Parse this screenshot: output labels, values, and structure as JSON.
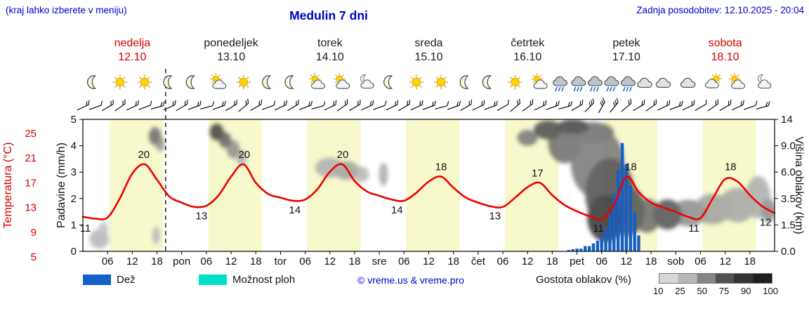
{
  "header": {
    "hint": "(kraj lahko izberete v meniju)",
    "title": "Medulin 7 dni",
    "updated": "Zadnja posodobitev: 12.10.2025 - 20:04"
  },
  "days": [
    {
      "name": "nedelja",
      "date": "12.10",
      "highlight": true
    },
    {
      "name": "ponedeljek",
      "date": "13.10",
      "highlight": false
    },
    {
      "name": "torek",
      "date": "14.10",
      "highlight": false
    },
    {
      "name": "sreda",
      "date": "15.10",
      "highlight": false
    },
    {
      "name": "četrtek",
      "date": "16.10",
      "highlight": false
    },
    {
      "name": "petek",
      "date": "17.10",
      "highlight": false
    },
    {
      "name": "sobota",
      "date": "18.10",
      "highlight": true
    }
  ],
  "axes": {
    "left_temp": {
      "label": "Temperatura (°C)"
    },
    "left_precip": {
      "label": "Padavine (mm/h)"
    },
    "right_cloud": {
      "label": "Višina oblakov (km)",
      "ticks": [
        "0.0",
        "1.5",
        "3.5",
        "6.0",
        "9.0",
        "14"
      ]
    },
    "x": {
      "hour_labels": [
        "06",
        "12",
        "18"
      ],
      "day_abbrevs": [
        "pon",
        "tor",
        "sre",
        "čet",
        "pet",
        "sob"
      ]
    }
  },
  "icons": [
    {
      "hour": 2.5,
      "type": "moon"
    },
    {
      "hour": 9,
      "type": "sun"
    },
    {
      "hour": 15,
      "type": "sun"
    },
    {
      "hour": 21,
      "type": "moon"
    },
    {
      "hour": 26.5,
      "type": "moon"
    },
    {
      "hour": 33,
      "type": "sun-cloud"
    },
    {
      "hour": 39,
      "type": "sun"
    },
    {
      "hour": 45,
      "type": "moon"
    },
    {
      "hour": 50.5,
      "type": "moon"
    },
    {
      "hour": 57,
      "type": "sun-cloud"
    },
    {
      "hour": 63,
      "type": "sun-cloud"
    },
    {
      "hour": 69,
      "type": "cloud-moon"
    },
    {
      "hour": 74.5,
      "type": "moon"
    },
    {
      "hour": 81,
      "type": "sun"
    },
    {
      "hour": 87,
      "type": "sun"
    },
    {
      "hour": 93,
      "type": "moon"
    },
    {
      "hour": 98.5,
      "type": "moon"
    },
    {
      "hour": 105,
      "type": "sun"
    },
    {
      "hour": 111,
      "type": "sun-cloud"
    },
    {
      "hour": 116,
      "type": "rain"
    },
    {
      "hour": 120.5,
      "type": "rain"
    },
    {
      "hour": 124.5,
      "type": "rain"
    },
    {
      "hour": 128.5,
      "type": "rain"
    },
    {
      "hour": 132.5,
      "type": "rain"
    },
    {
      "hour": 136.5,
      "type": "cloud"
    },
    {
      "hour": 141,
      "type": "cloud"
    },
    {
      "hour": 147,
      "type": "cloud"
    },
    {
      "hour": 153,
      "type": "cloud-sun"
    },
    {
      "hour": 159,
      "type": "sun-cloud"
    },
    {
      "hour": 165.5,
      "type": "cloud-moon"
    }
  ],
  "legend": {
    "rain_label": "Dež",
    "showers_label": "Možnost ploh",
    "copyright": "© vreme.us & vreme.pro",
    "cloud_density_label": "Gostota oblakov (%)",
    "density_values": [
      10,
      25,
      50,
      75,
      90,
      100
    ]
  },
  "colors": {
    "blue_text": "#0000cd",
    "red_text": "#d40000",
    "temp_curve": "#ee0000",
    "rain": "#1560c8",
    "showers": "#00dfc8",
    "day_band": "#f8f8cd",
    "sun": "#ffd400",
    "sun_ray": "#e0a400",
    "sun_edge": "#c08b00",
    "moon": "#fdf9d8",
    "cloud_light": "#f2f4f6",
    "cloud_mid": "#dfe3e8",
    "cloud_dark": "#bcc5cf",
    "rain_streak": "#2268d8"
  },
  "chart_data": {
    "type": "meteogram",
    "title": "Medulin 7 dni",
    "hours_start": 0,
    "hours_end": 168,
    "current_hour": 20.1,
    "day_band": {
      "start_hour": 6.5,
      "end_hour": 19.5
    },
    "temp_axis": {
      "min": 5,
      "max": 25,
      "ticks": [
        25,
        21,
        17,
        13,
        9,
        5
      ]
    },
    "precip_axis": {
      "min": 0,
      "max": 5,
      "ticks": [
        5,
        4,
        3,
        2,
        1,
        0
      ]
    },
    "cloud_axis_km": [
      0,
      1.5,
      3.5,
      6,
      9,
      14
    ],
    "temperature": {
      "step_hours": 3,
      "values": [
        11.5,
        11.2,
        11.4,
        14.5,
        18.5,
        20,
        17.5,
        14.8,
        13.8,
        13.1,
        13.3,
        15,
        18,
        20,
        17,
        15.2,
        14.6,
        14.1,
        14.3,
        16,
        18.8,
        20,
        17.3,
        15.6,
        14.9,
        14.3,
        14.1,
        15.4,
        17.2,
        18,
        16.2,
        14.6,
        13.8,
        13.2,
        13.1,
        14.6,
        16.3,
        17,
        15,
        13.4,
        12.4,
        11.6,
        11.1,
        13.5,
        18,
        15.5,
        13.8,
        13,
        12.3,
        11.5,
        11.3,
        14.5,
        17.6,
        17.2,
        15,
        13.2,
        12.1
      ]
    },
    "point_labels": [
      {
        "hour": 0.6,
        "value": 11,
        "placement": "below"
      },
      {
        "hour": 14.8,
        "value": 20,
        "placement": "above"
      },
      {
        "hour": 28.8,
        "value": 13,
        "placement": "below"
      },
      {
        "hour": 39.2,
        "value": 20,
        "placement": "above"
      },
      {
        "hour": 51.5,
        "value": 14,
        "placement": "below"
      },
      {
        "hour": 63.1,
        "value": 20,
        "placement": "above"
      },
      {
        "hour": 76.3,
        "value": 14,
        "placement": "below"
      },
      {
        "hour": 87,
        "value": 18,
        "placement": "above"
      },
      {
        "hour": 100.1,
        "value": 13,
        "placement": "below"
      },
      {
        "hour": 110.4,
        "value": 17,
        "placement": "above"
      },
      {
        "hour": 125.2,
        "value": 11,
        "placement": "below"
      },
      {
        "hour": 133.1,
        "value": 18,
        "placement": "above"
      },
      {
        "hour": 148.4,
        "value": 11,
        "placement": "below"
      },
      {
        "hour": 157.3,
        "value": 18,
        "placement": "above"
      },
      {
        "hour": 165.8,
        "value": 12,
        "placement": "below"
      }
    ],
    "rain_bars": [
      {
        "hour": 118,
        "mmh": 0.05
      },
      {
        "hour": 119,
        "mmh": 0.08
      },
      {
        "hour": 120,
        "mmh": 0.1
      },
      {
        "hour": 121,
        "mmh": 0.1
      },
      {
        "hour": 122,
        "mmh": 0.2
      },
      {
        "hour": 123,
        "mmh": 0.2
      },
      {
        "hour": 124,
        "mmh": 0.3
      },
      {
        "hour": 125,
        "mmh": 0.4
      },
      {
        "hour": 126,
        "mmh": 0.6
      },
      {
        "hour": 127,
        "mmh": 0.9
      },
      {
        "hour": 128,
        "mmh": 1.4
      },
      {
        "hour": 129,
        "mmh": 2.2
      },
      {
        "hour": 130,
        "mmh": 3.1
      },
      {
        "hour": 131,
        "mmh": 4.1
      },
      {
        "hour": 132,
        "mmh": 3.3
      },
      {
        "hour": 133,
        "mmh": 2.5
      },
      {
        "hour": 134,
        "mmh": 1.5
      },
      {
        "hour": 135,
        "mmh": 0.6
      }
    ],
    "clouds": [
      {
        "hour": 4,
        "km": 0.7,
        "rh": 2.4,
        "rkm": 0.55,
        "density": 25
      },
      {
        "hour": 5,
        "km": 1.3,
        "rh": 1.2,
        "rkm": 0.4,
        "density": 20
      },
      {
        "hour": 17.8,
        "km": 0.9,
        "rh": 0.9,
        "rkm": 0.5,
        "density": 25
      },
      {
        "hour": 17.5,
        "km": 10.8,
        "rh": 1.5,
        "rkm": 1.7,
        "density": 60
      },
      {
        "hour": 18.8,
        "km": 9.3,
        "rh": 1.1,
        "rkm": 1.1,
        "density": 40
      },
      {
        "hour": 32.5,
        "km": 11.6,
        "rh": 1.7,
        "rkm": 1.6,
        "density": 80
      },
      {
        "hour": 34.5,
        "km": 10.1,
        "rh": 1.5,
        "rkm": 1.4,
        "density": 65
      },
      {
        "hour": 36.5,
        "km": 8.6,
        "rh": 1.6,
        "rkm": 1.2,
        "density": 45
      },
      {
        "hour": 38.5,
        "km": 7.6,
        "rh": 1.2,
        "rkm": 0.9,
        "density": 30
      },
      {
        "hour": 60,
        "km": 6.5,
        "rh": 3.6,
        "rkm": 1.1,
        "density": 28
      },
      {
        "hour": 64,
        "km": 6.2,
        "rh": 3,
        "rkm": 1,
        "density": 35
      },
      {
        "hour": 67.5,
        "km": 5.8,
        "rh": 2,
        "rkm": 0.8,
        "density": 25
      },
      {
        "hour": 73,
        "km": 5.8,
        "rh": 1.1,
        "rkm": 1.2,
        "density": 30
      },
      {
        "hour": 108,
        "km": 10.5,
        "rh": 2.5,
        "rkm": 1.5,
        "density": 55
      },
      {
        "hour": 113,
        "km": 12,
        "rh": 3.5,
        "rkm": 1.8,
        "density": 75
      },
      {
        "hour": 119,
        "km": 12.6,
        "rh": 4,
        "rkm": 1.4,
        "density": 80
      },
      {
        "hour": 117,
        "km": 9.5,
        "rh": 4,
        "rkm": 3,
        "density": 60
      },
      {
        "hour": 124,
        "km": 11.5,
        "rh": 5,
        "rkm": 2,
        "density": 60
      },
      {
        "hour": 125,
        "km": 7,
        "rh": 6.5,
        "rkm": 4,
        "density": 55
      },
      {
        "hour": 128,
        "km": 4,
        "rh": 6,
        "rkm": 3,
        "density": 75
      },
      {
        "hour": 127,
        "km": 2,
        "rh": 4.5,
        "rkm": 1.6,
        "density": 88
      },
      {
        "hour": 132,
        "km": 2.6,
        "rh": 4.5,
        "rkm": 1.9,
        "density": 72
      },
      {
        "hour": 137,
        "km": 2.2,
        "rh": 3.5,
        "rkm": 1.2,
        "density": 60
      },
      {
        "hour": 142,
        "km": 2.3,
        "rh": 3.5,
        "rkm": 1.1,
        "density": 72
      },
      {
        "hour": 147,
        "km": 2.4,
        "rh": 4.5,
        "rkm": 1,
        "density": 45
      },
      {
        "hour": 153,
        "km": 2.7,
        "rh": 4.5,
        "rkm": 1.2,
        "density": 35
      },
      {
        "hour": 159,
        "km": 3,
        "rh": 4.5,
        "rkm": 1.4,
        "density": 32
      },
      {
        "hour": 164,
        "km": 3.6,
        "rh": 3,
        "rkm": 1.8,
        "density": 30
      },
      {
        "hour": 166.5,
        "km": 2.6,
        "rh": 1.8,
        "rkm": 0.9,
        "density": 45
      }
    ],
    "wind": {
      "start_hour": 0,
      "step_hours": 3,
      "angles": [
        -25,
        -20,
        -30,
        -35,
        -25,
        -20,
        -15,
        -25,
        -30,
        -20,
        -15,
        -20,
        -30,
        -40,
        -30,
        -20,
        -25,
        -30,
        -20,
        -15,
        -25,
        -35,
        -30,
        -25,
        -20,
        -25,
        -30,
        -25,
        -20,
        -15,
        -20,
        -30,
        -25,
        -20,
        -30,
        -40,
        -35,
        -25,
        -20,
        -15,
        -30,
        -45,
        -60,
        -50,
        -40,
        -30,
        -35,
        -25,
        -20,
        -25,
        -30,
        -35,
        -30,
        -25,
        -20,
        -15
      ],
      "feathers": [
        2,
        1,
        2,
        2,
        2,
        1,
        2,
        2,
        2,
        2,
        1,
        2,
        2,
        2,
        2,
        1,
        2,
        2,
        2,
        1,
        2,
        2,
        2,
        2,
        1,
        2,
        2,
        2,
        2,
        1,
        2,
        2,
        2,
        2,
        1,
        2,
        2,
        2,
        2,
        2,
        2,
        3,
        3,
        3,
        2,
        2,
        2,
        2,
        2,
        2,
        1,
        2,
        2,
        2,
        1,
        2
      ]
    }
  }
}
